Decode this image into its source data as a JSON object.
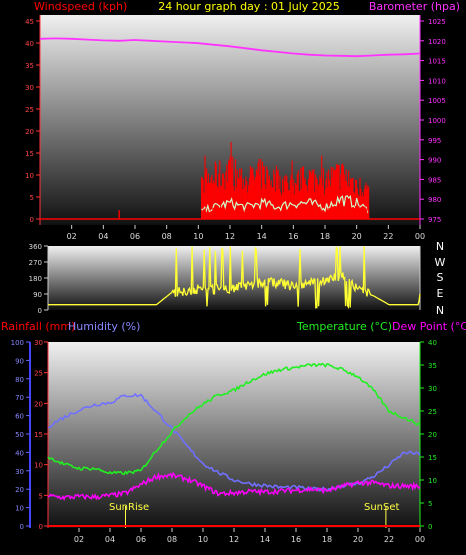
{
  "header": {
    "title": "24 hour graph day : 01 July 2025",
    "wind_label": "Windspeed (kph)",
    "baro_label": "Barometer (hpa)"
  },
  "bottom_labels": {
    "rain": "Rainfall (mm)",
    "humidity": "Humidity (%)",
    "temperature": "Temperature (°C)",
    "dewpoint": "Dew Point (°C)"
  },
  "compass": [
    "N",
    "W",
    "S",
    "E",
    "N"
  ],
  "sun_events": {
    "sunrise": "SunRise",
    "sunset": "SunSet",
    "sunrise_hour": 5.0,
    "sunset_hour": 21.8
  },
  "colors": {
    "wind": "#ff0000",
    "gust_fill": "#00cc00",
    "wind_avg": "#ccffcc",
    "barometer": "#ff33ff",
    "direction": "#ffff33",
    "rain": "#ff0000",
    "humidity": "#7070ff",
    "temperature": "#22ee22",
    "dewpoint": "#ff00ff",
    "panel_top": "#f0f0f0",
    "panel_bottom": "#101010"
  },
  "chart_data": [
    {
      "type": "line",
      "name": "wind-barometer",
      "x_ticks": [
        "02",
        "04",
        "06",
        "08",
        "10",
        "12",
        "14",
        "16",
        "18",
        "20",
        "22",
        "00"
      ],
      "xlim": [
        0,
        24
      ],
      "y_left": {
        "label": "Windspeed (kph)",
        "ylim": [
          0,
          45
        ],
        "ticks": [
          0,
          5,
          10,
          15,
          20,
          25,
          30,
          35,
          40,
          45
        ]
      },
      "y_right": {
        "label": "Barometer (hpa)",
        "ylim": [
          975,
          1025
        ],
        "ticks": [
          975,
          980,
          985,
          990,
          995,
          1000,
          1005,
          1010,
          1015,
          1020,
          1025
        ]
      },
      "barometer": {
        "x": [
          0,
          1,
          2,
          3,
          4,
          5,
          6,
          7,
          8,
          9,
          10,
          11,
          12,
          13,
          14,
          15,
          16,
          17,
          18,
          19,
          20,
          21,
          22,
          23,
          24
        ],
        "y": [
          1020.5,
          1020.6,
          1020.5,
          1020.3,
          1020.1,
          1020.0,
          1020.2,
          1020.0,
          1019.8,
          1019.6,
          1019.4,
          1019.0,
          1018.6,
          1018.1,
          1017.6,
          1017.2,
          1016.8,
          1016.5,
          1016.3,
          1016.2,
          1016.1,
          1016.3,
          1016.5,
          1016.6,
          1016.8
        ]
      },
      "wind_active_hours": [
        10.2,
        20.8
      ],
      "wind_gust_envelope": {
        "x": [
          10.2,
          11,
          12,
          13,
          14,
          15,
          16,
          17,
          18,
          19,
          20,
          20.8
        ],
        "y": [
          11,
          13,
          15,
          12,
          14,
          12,
          11,
          13,
          12,
          14,
          11,
          9
        ]
      },
      "wind_avg_envelope": {
        "x": [
          10.2,
          11,
          12,
          13,
          14,
          15,
          16,
          17,
          18,
          19,
          20,
          20.8
        ],
        "y": [
          2,
          3,
          4,
          3,
          4,
          3,
          4,
          4,
          3,
          5,
          4,
          2
        ]
      },
      "isolated_spike": {
        "x": 5.0,
        "y": 2
      }
    },
    {
      "type": "line",
      "name": "wind-direction",
      "xlim": [
        0,
        24
      ],
      "ylim": [
        0,
        360
      ],
      "y_ticks": [
        0,
        90,
        180,
        270,
        360
      ],
      "x": [
        0,
        1,
        2,
        3,
        4,
        5,
        6,
        7,
        8,
        9,
        10,
        11,
        12,
        13,
        14,
        15,
        16,
        17,
        18,
        19,
        20,
        21,
        22,
        23,
        23.9,
        24
      ],
      "y": [
        30,
        30,
        30,
        30,
        30,
        30,
        30,
        30,
        100,
        110,
        120,
        115,
        125,
        140,
        160,
        150,
        130,
        150,
        170,
        200,
        110,
        80,
        30,
        30,
        30,
        90
      ]
    },
    {
      "type": "line",
      "name": "temp-humidity-rain",
      "x_ticks": [
        "02",
        "04",
        "06",
        "08",
        "10",
        "12",
        "14",
        "16",
        "18",
        "20",
        "22",
        "00"
      ],
      "xlim": [
        0,
        24
      ],
      "humidity_axis": {
        "ylim": [
          0,
          100
        ],
        "ticks": [
          0,
          10,
          20,
          30,
          40,
          50,
          60,
          70,
          80,
          90,
          100
        ]
      },
      "rain_axis": {
        "ylim": [
          0,
          30
        ],
        "ticks": [
          0,
          5,
          10,
          15,
          20,
          25,
          30
        ]
      },
      "temp_axis": {
        "ylim": [
          0,
          40
        ],
        "ticks": [
          0,
          5,
          10,
          15,
          20,
          25,
          30,
          35,
          40
        ]
      },
      "humidity": {
        "x": [
          0,
          1,
          2,
          3,
          4,
          5,
          6,
          7,
          8,
          9,
          10,
          11,
          12,
          13,
          14,
          15,
          16,
          17,
          18,
          19,
          20,
          21,
          22,
          23,
          24
        ],
        "y": [
          54,
          59,
          63,
          66,
          67,
          71,
          71,
          62,
          53,
          43,
          34,
          29,
          25,
          23,
          22,
          21,
          21,
          20,
          20,
          22,
          23,
          27,
          33,
          40,
          39
        ]
      },
      "temperature": {
        "x": [
          0,
          1,
          2,
          3,
          4,
          5,
          6,
          7,
          8,
          9,
          10,
          11,
          12,
          13,
          14,
          15,
          16,
          17,
          18,
          19,
          20,
          21,
          22,
          23,
          24
        ],
        "y": [
          15,
          13.5,
          12.5,
          12.5,
          11.5,
          11.5,
          12.0,
          16.5,
          20.5,
          24.0,
          26.5,
          28.5,
          29.5,
          31.5,
          33.0,
          34.0,
          34.5,
          35.0,
          35.0,
          34.0,
          32.5,
          29.5,
          25.0,
          23.5,
          22.0
        ]
      },
      "dewpoint": {
        "x": [
          0,
          1,
          2,
          3,
          4,
          5,
          6,
          7,
          8,
          9,
          10,
          11,
          12,
          13,
          14,
          15,
          16,
          17,
          18,
          19,
          20,
          21,
          22,
          23,
          24
        ],
        "y": [
          6.5,
          6.2,
          6.4,
          6.3,
          6.6,
          7.1,
          9.0,
          10.8,
          11.0,
          10.2,
          8.7,
          7.0,
          7.2,
          7.5,
          7.4,
          7.6,
          7.8,
          8.0,
          7.7,
          8.6,
          9.4,
          9.4,
          8.7,
          8.7,
          8.6
        ]
      },
      "rainfall": {
        "x": [
          0,
          24
        ],
        "y": [
          0,
          0
        ]
      }
    }
  ]
}
